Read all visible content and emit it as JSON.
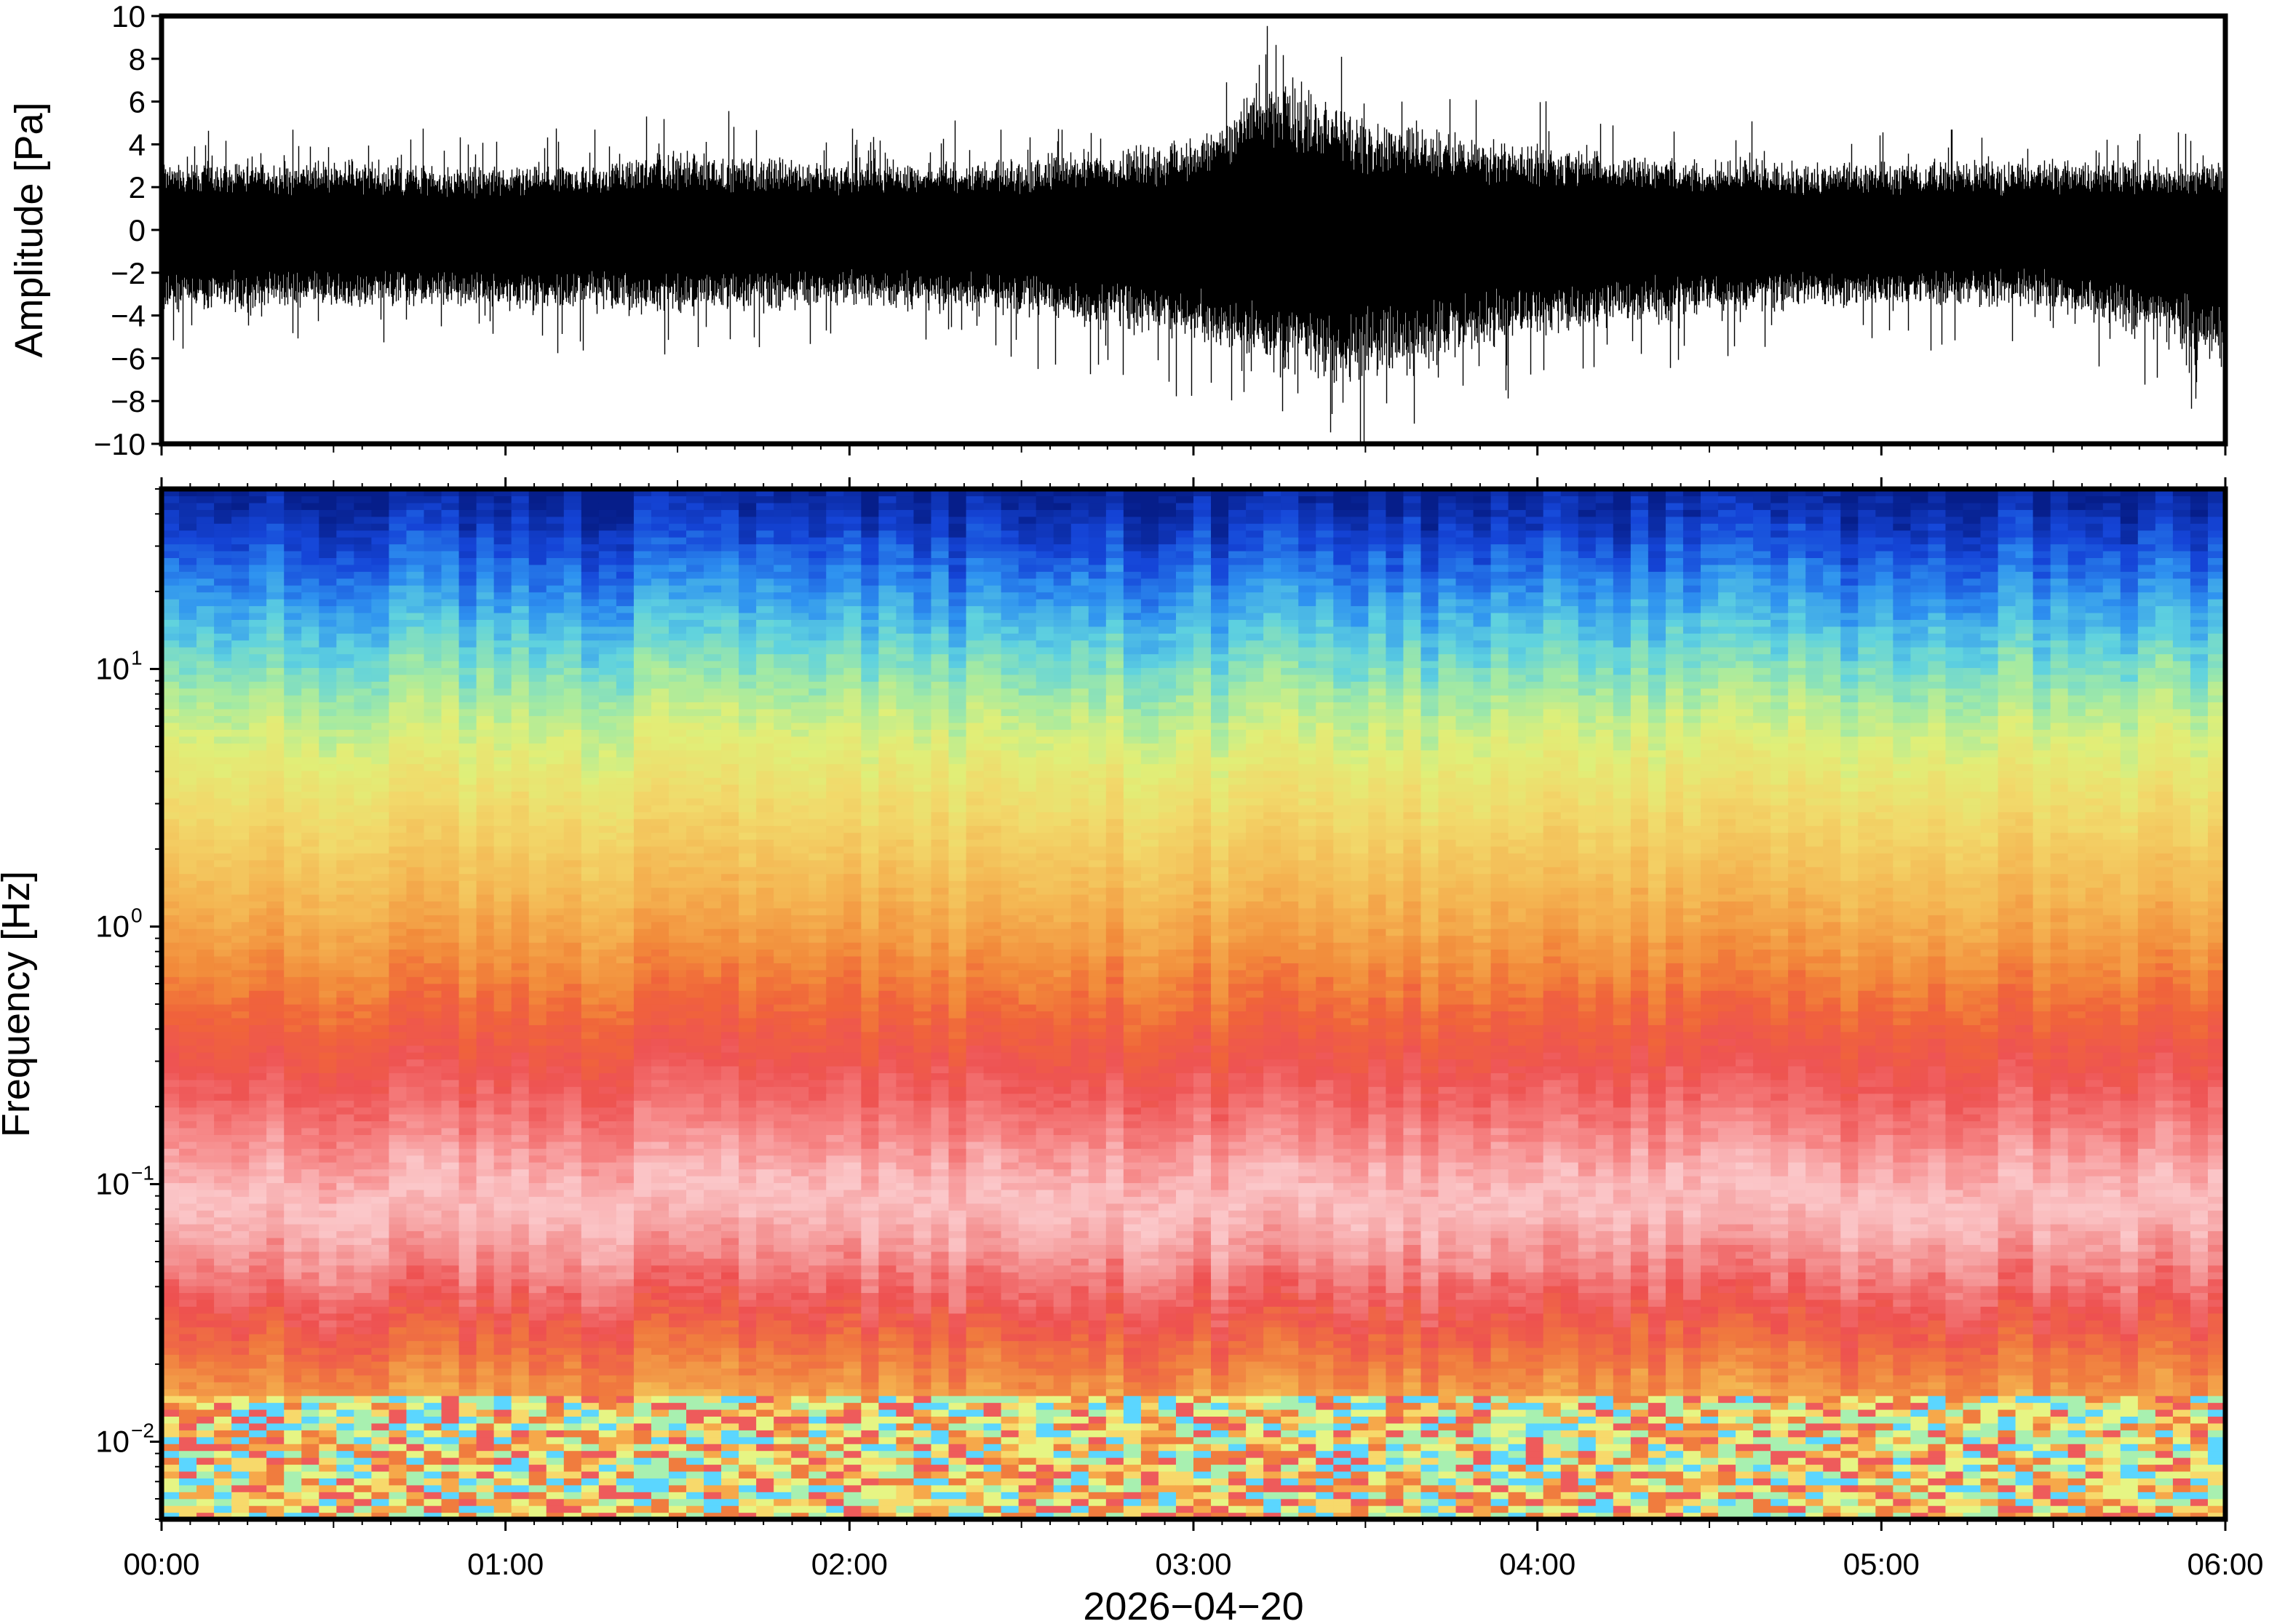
{
  "chart_data": [
    {
      "type": "line",
      "title": "",
      "ylabel": "Amplitude [Pa]",
      "xlabel": "",
      "ylim": [
        -10,
        10
      ],
      "yticks": [
        10,
        8,
        6,
        4,
        2,
        0,
        -2,
        -4,
        -6,
        -8,
        -10
      ],
      "ytick_labels": [
        "10",
        "8",
        "6",
        "4",
        "2",
        "0",
        "−2",
        "−4",
        "−6",
        "−8",
        "−10"
      ],
      "x_range": [
        "00:00",
        "06:00"
      ],
      "series": [
        {
          "x": [
            "00:00",
            "00:30",
            "01:00",
            "01:30",
            "02:00",
            "02:30",
            "03:00",
            "03:15",
            "03:30",
            "04:00",
            "04:30",
            "05:00",
            "05:30",
            "06:00"
          ],
          "envelope_max": [
            4.5,
            4.5,
            4.0,
            5.0,
            4.5,
            4.5,
            6.0,
            10.0,
            7.0,
            5.5,
            4.5,
            4.5,
            4.5,
            4.5
          ],
          "envelope_min": [
            -5.5,
            -5.0,
            -5.0,
            -5.5,
            -5.0,
            -5.5,
            -7.5,
            -9.0,
            -10.0,
            -7.0,
            -5.5,
            -5.0,
            -5.0,
            -9.0
          ]
        }
      ],
      "grid": false
    },
    {
      "type": "heatmap",
      "title": "",
      "ylabel": "Frequency [Hz]",
      "xlabel": "2026−04−20",
      "y_scale": "log",
      "ylim": [
        0.005,
        50
      ],
      "yticks": [
        0.01,
        0.1,
        1,
        10
      ],
      "ytick_labels": [
        {
          "base": "10",
          "exp": "−2"
        },
        {
          "base": "10",
          "exp": "−1"
        },
        {
          "base": "10",
          "exp": "0"
        },
        {
          "base": "10",
          "exp": "1"
        }
      ],
      "x_tick_labels": [
        "00:00",
        "01:00",
        "02:00",
        "03:00",
        "04:00",
        "05:00",
        "06:00"
      ],
      "colormap": [
        "#5bd6ff",
        "#a8f0b0",
        "#e6f584",
        "#f7d96b",
        "#f6a84a",
        "#f07c3e",
        "#ee5b5b",
        "#f58c8c",
        "#fbc6c8",
        "#ef6a6a",
        "#f26a2a",
        "#f4c35c",
        "#ecef72",
        "#9be9a8",
        "#6fd8d6",
        "#3aa6f2",
        "#1a5fe0",
        "#0a2bc4",
        "#061e8a"
      ],
      "grid": false
    }
  ]
}
